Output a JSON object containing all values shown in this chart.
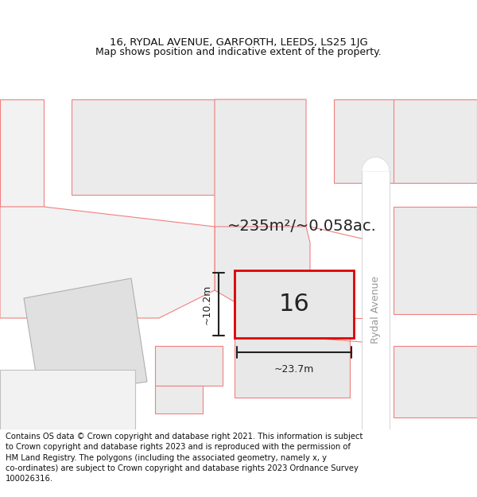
{
  "title_line1": "16, RYDAL AVENUE, GARFORTH, LEEDS, LS25 1JG",
  "title_line2": "Map shows position and indicative extent of the property.",
  "footer_text": "Contains OS data © Crown copyright and database right 2021. This information is subject\nto Crown copyright and database rights 2023 and is reproduced with the permission of\nHM Land Registry. The polygons (including the associated geometry, namely x, y\nco-ordinates) are subject to Crown copyright and database rights 2023 Ordnance Survey\n100026316.",
  "map_bg": "#f2f2f2",
  "fig_bg": "#ffffff",
  "plot_label": "16",
  "area_text": "~235m²/~0.058ac.",
  "width_text": "~23.7m",
  "height_text": "~10.2m",
  "road_label": "Rydal Avenue",
  "parcel_fill": "#ebebeb",
  "parcel_edge": "#f08080",
  "road_fill": "#f0f0f0",
  "road_edge": "#d0d0d0",
  "subject_fill": "#e8e8e8",
  "subject_edge": "#dd0000",
  "dim_color": "#222222",
  "title_fontsize": 9.5,
  "subtitle_fontsize": 9,
  "footer_fontsize": 7.2,
  "label_fontsize": 22,
  "area_fontsize": 14,
  "dim_fontsize": 9,
  "road_fontsize": 9
}
